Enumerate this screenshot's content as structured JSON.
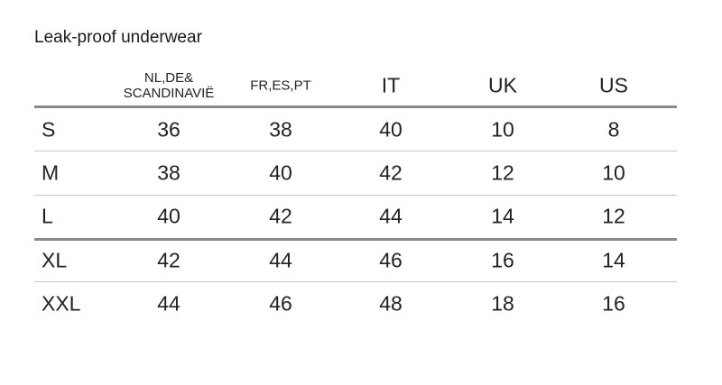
{
  "title": "Leak-proof underwear",
  "headers": [
    "NL,DE&",
    "SCANDINAVIË",
    "FR,ES,PT",
    "IT",
    "UK",
    "US"
  ],
  "rows": [
    {
      "size": "S",
      "values": [
        "36",
        "38",
        "40",
        "10",
        "8"
      ]
    },
    {
      "size": "M",
      "values": [
        "38",
        "40",
        "42",
        "12",
        "10"
      ]
    },
    {
      "size": "L",
      "values": [
        "40",
        "42",
        "44",
        "14",
        "12"
      ]
    },
    {
      "size": "XL",
      "values": [
        "42",
        "44",
        "46",
        "16",
        "14"
      ]
    },
    {
      "size": "XXL",
      "values": [
        "44",
        "46",
        "48",
        "18",
        "16"
      ]
    }
  ]
}
